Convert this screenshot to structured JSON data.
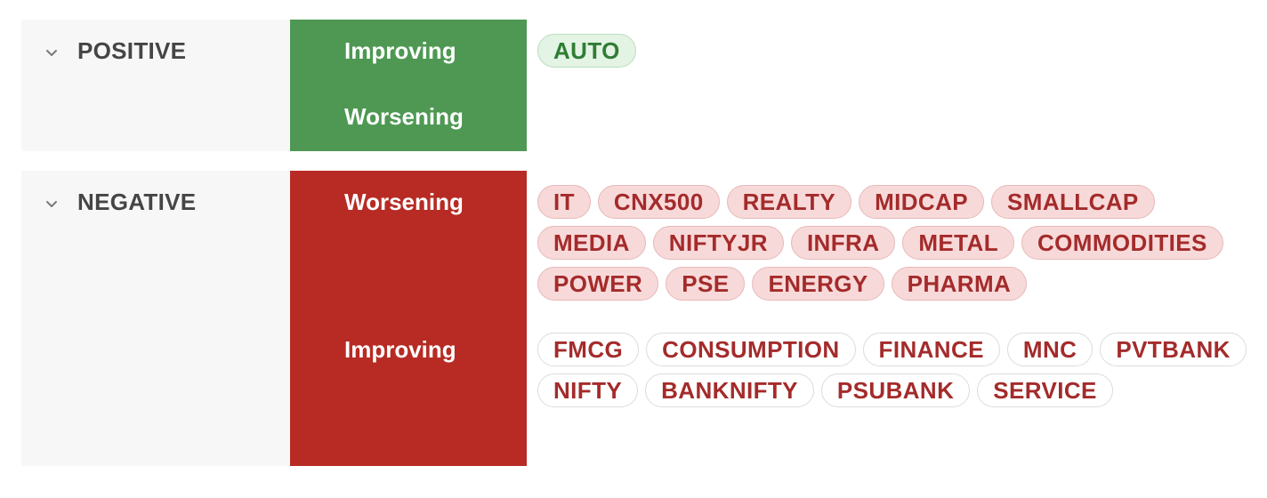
{
  "groups": {
    "positive": {
      "title": "POSITIVE",
      "color": "#4e9853",
      "states": {
        "improving": {
          "label": "Improving",
          "tags": [
            "AUTO"
          ]
        },
        "worsening": {
          "label": "Worsening",
          "tags": []
        }
      }
    },
    "negative": {
      "title": "NEGATIVE",
      "color": "#b72b24",
      "states": {
        "worsening": {
          "label": "Worsening",
          "tags": [
            "IT",
            "CNX500",
            "REALTY",
            "MIDCAP",
            "SMALLCAP",
            "MEDIA",
            "NIFTYJR",
            "INFRA",
            "METAL",
            "COMMODITIES",
            "POWER",
            "PSE",
            "ENERGY",
            "PHARMA"
          ]
        },
        "improving": {
          "label": "Improving",
          "tags": [
            "FMCG",
            "CONSUMPTION",
            "FINANCE",
            "MNC",
            "PVTBANK",
            "NIFTY",
            "BANKNIFTY",
            "PSUBANK",
            "SERVICE"
          ]
        }
      }
    }
  },
  "icons": {
    "collapse": "chevron-down-icon"
  }
}
